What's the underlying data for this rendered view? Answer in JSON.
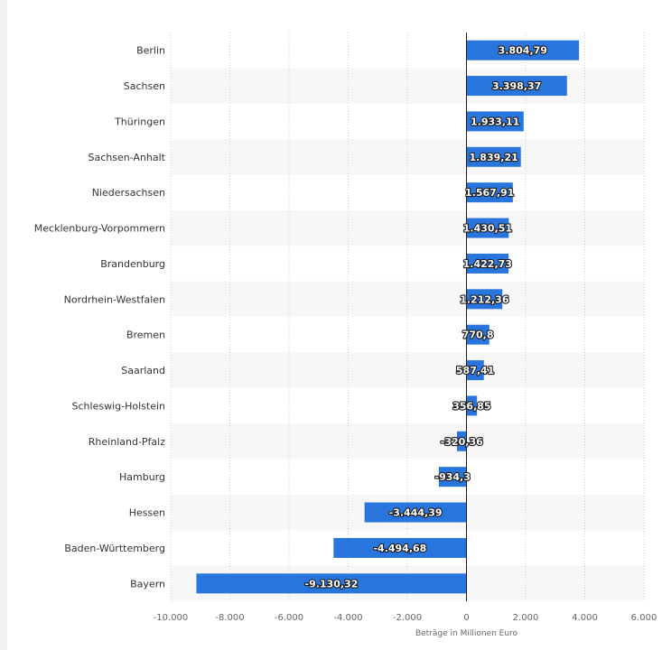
{
  "chart_data": {
    "type": "bar",
    "orientation": "horizontal",
    "categories": [
      "Berlin",
      "Sachsen",
      "Thüringen",
      "Sachsen-Anhalt",
      "Niedersachsen",
      "Mecklenburg-Vorpommern",
      "Brandenburg",
      "Nordrhein-Westfalen",
      "Bremen",
      "Saarland",
      "Schleswig-Holstein",
      "Rheinland-Pfalz",
      "Hamburg",
      "Hessen",
      "Baden-Württemberg",
      "Bayern"
    ],
    "values": [
      3804.79,
      3398.37,
      1933.11,
      1839.21,
      1567.91,
      1430.51,
      1422.73,
      1212.36,
      770.8,
      587.41,
      356.85,
      -320.36,
      -934.3,
      -3444.39,
      -4494.68,
      -9130.32
    ],
    "value_labels": [
      "3.804,79",
      "3.398,37",
      "1.933,11",
      "1.839,21",
      "1.567,91",
      "1.430,51",
      "1.422,73",
      "1.212,36",
      "770,8",
      "587,41",
      "356,85",
      "-320,36",
      "-934,3",
      "-3.444,39",
      "-4.494,68",
      "-9.130,32"
    ],
    "xlabel": "Beträge in Millionen Euro",
    "xlim": [
      -10000,
      6000
    ],
    "xticks": [
      -10000,
      -8000,
      -6000,
      -4000,
      -2000,
      0,
      2000,
      4000,
      6000
    ],
    "xtick_labels": [
      "-10.000",
      "-8.000",
      "-6.000",
      "-4.000",
      "-2.000",
      "0",
      "2.000",
      "4.000",
      "6.000"
    ],
    "grid": true,
    "bar_color": "#2876dd",
    "row_band_color": "#f7f7f7"
  }
}
